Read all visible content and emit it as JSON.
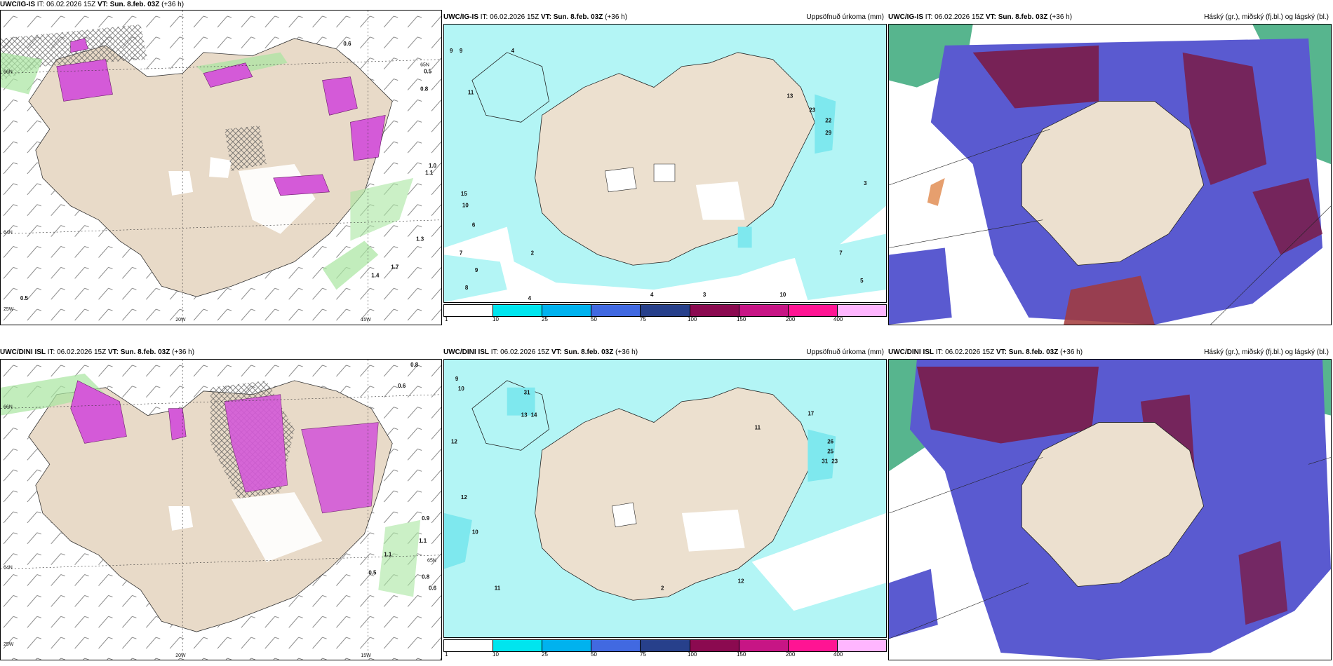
{
  "panels": [
    {
      "model": "UWC/IG-IS",
      "it": " IT: 06.02.2026 15Z ",
      "vt": "VT: Sun. 8.feb. 03Z",
      "lead": " (+36 h)",
      "right": "",
      "axis": [
        "25W",
        "20W",
        "15W",
        "66N",
        "65N",
        "64N"
      ],
      "values": [
        "0.6",
        "0.5",
        "0.8",
        "1.0",
        "1.1",
        "1.3",
        "1.4",
        "1.7",
        "0.5"
      ]
    },
    {
      "model": "UWC/IG-IS",
      "it": " IT: 06.02.2026 15Z ",
      "vt": "VT: Sun. 8.feb. 03Z",
      "lead": " (+36 h)",
      "right": "Uppsöfnuð úrkoma (mm)",
      "values": [
        "9",
        "9",
        "4",
        "11",
        "15",
        "10",
        "6",
        "7",
        "9",
        "8",
        "4",
        "2",
        "22",
        "29",
        "23",
        "13",
        "3",
        "10",
        "4",
        "7",
        "5",
        "3"
      ]
    },
    {
      "model": "UWC/IG-IS",
      "it": " IT: 06.02.2026 15Z ",
      "vt": "VT: Sun. 8.feb. 03Z",
      "lead": " (+36 h)",
      "right": "Háský (gr.), miðský (fj.bl.) og lágský (bl.)"
    },
    {
      "model": "UWC/DINI ISL",
      "it": " IT: 06.02.2026 15Z ",
      "vt": "VT: Sun. 8.feb. 03Z",
      "lead": " (+36 h)",
      "right": "",
      "axis": [
        "25W",
        "20W",
        "15W",
        "66N",
        "65N",
        "64N"
      ],
      "values": [
        "0.8",
        "0.6",
        "0.9",
        "1.1",
        "1.1",
        "0.5",
        "0.8",
        "0.6"
      ]
    },
    {
      "model": "UWC/DINI ISL",
      "it": " IT: 06.02.2026 15Z ",
      "vt": "VT: Sun. 8.feb. 03Z",
      "lead": " (+36 h)",
      "right": "Uppsöfnuð úrkoma (mm)",
      "values": [
        "9",
        "10",
        "12",
        "12",
        "10",
        "11",
        "31",
        "13",
        "14",
        "26",
        "25",
        "31",
        "23",
        "17",
        "12",
        "11",
        "2"
      ]
    },
    {
      "model": "UWC/DINI ISL",
      "it": " IT: 06.02.2026 15Z ",
      "vt": "VT: Sun. 8.feb. 03Z",
      "lead": " (+36 h)",
      "right": "Háský (gr.), miðský (fj.bl.) og lágský (bl.)"
    }
  ],
  "legend": {
    "labels": [
      "1",
      "10",
      "25",
      "50",
      "75",
      "100",
      "150",
      "200",
      "400"
    ],
    "colors": [
      "#ffffff",
      "#00e5ee",
      "#00b2ee",
      "#4169e1",
      "#27408b",
      "#8b0a50",
      "#c71585",
      "#ff1493",
      "#ffb6ff"
    ]
  },
  "colors": {
    "land": "#ece0cf",
    "ocean_precip": "#b3f5f5",
    "precip_mid": "#7ee8ee",
    "snow_pink": "#d45ad8",
    "green": "#9fe09f",
    "cloud_low": "#5a5ad0",
    "cloud_mid": "#8b1a4a",
    "cloud_high": "#2e8b57"
  }
}
